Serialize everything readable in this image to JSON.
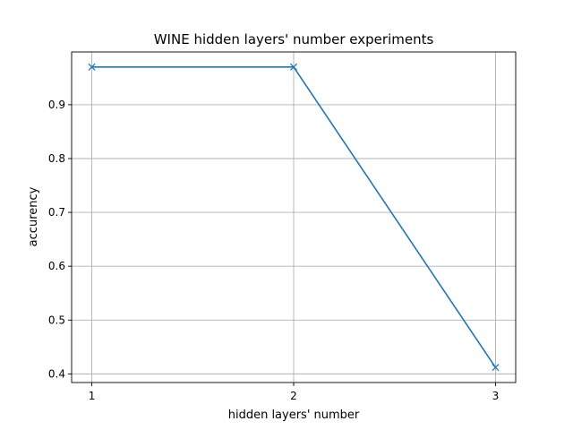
{
  "chart_data": {
    "type": "line",
    "title": "WINE hidden layers' number experiments",
    "xlabel": "hidden layers' number",
    "ylabel": "accurency",
    "x": [
      1,
      2,
      3
    ],
    "series": [
      {
        "values": [
          0.97,
          0.97,
          0.412
        ],
        "color": "#1f77b4",
        "marker": "x"
      }
    ],
    "xticks": [
      "1",
      "2",
      "3"
    ],
    "yticks": [
      "0.4",
      "0.5",
      "0.6",
      "0.7",
      "0.8",
      "0.9"
    ],
    "xlim": [
      0.9,
      3.1
    ],
    "ylim": [
      0.384,
      0.998
    ],
    "grid": true
  }
}
